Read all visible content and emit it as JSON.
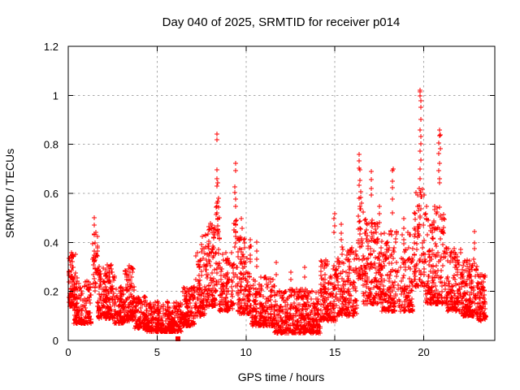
{
  "chart_data": {
    "type": "scatter",
    "title": "Day 040 of 2025, SRMTID for receiver p014",
    "xlabel": "GPS time / hours",
    "ylabel": "SRMTID / TECUs",
    "xlim": [
      0,
      24
    ],
    "ylim": [
      0,
      1.2
    ],
    "xticks": [
      0,
      5,
      10,
      15,
      20
    ],
    "yticks": [
      0,
      0.2,
      0.4,
      0.6,
      0.8,
      1,
      1.2
    ],
    "grid": {
      "visible": true,
      "style": "dashed",
      "lines_at_x": [
        5,
        10,
        15,
        20
      ],
      "lines_at_y": [
        0.2,
        0.4,
        0.6,
        0.8,
        1.0
      ]
    },
    "legend": "none",
    "marker": {
      "shape": "plus",
      "size": 7
    },
    "colors": {
      "marker": "#ff0000",
      "grid": "#a9a9a9",
      "axis": "#000000",
      "background": "#ffffff"
    },
    "max_point": {
      "x": 19.8,
      "y": 1.02
    },
    "special_points": [
      {
        "x": 6.17,
        "y": 0.005,
        "marker": "filled-square"
      }
    ],
    "spike_columns": [
      {
        "x": 1.48,
        "ys": [
          0.5,
          0.47,
          0.43,
          0.4,
          0.35,
          0.32,
          0.29
        ]
      },
      {
        "x": 2.3,
        "ys": [
          0.3,
          0.28,
          0.26,
          0.24
        ]
      },
      {
        "x": 3.4,
        "ys": [
          0.3,
          0.27,
          0.25
        ]
      },
      {
        "x": 7.5,
        "ys": [
          0.42,
          0.39,
          0.36,
          0.33
        ]
      },
      {
        "x": 8.37,
        "ys": [
          0.845,
          0.82,
          0.7,
          0.66,
          0.645,
          0.63,
          0.55,
          0.52,
          0.515,
          0.5,
          0.47,
          0.44
        ]
      },
      {
        "x": 9.42,
        "ys": [
          0.72,
          0.69,
          0.63,
          0.6,
          0.58,
          0.55,
          0.47,
          0.44
        ]
      },
      {
        "x": 9.75,
        "ys": [
          0.5,
          0.46,
          0.42
        ]
      },
      {
        "x": 10.6,
        "ys": [
          0.4,
          0.37,
          0.33,
          0.3
        ]
      },
      {
        "x": 11.66,
        "ys": [
          0.315,
          0.27
        ]
      },
      {
        "x": 12.5,
        "ys": [
          0.28,
          0.25
        ]
      },
      {
        "x": 13.3,
        "ys": [
          0.3,
          0.26
        ]
      },
      {
        "x": 14.95,
        "ys": [
          0.52,
          0.5,
          0.47,
          0.44
        ]
      },
      {
        "x": 15.35,
        "ys": [
          0.47,
          0.44,
          0.41
        ]
      },
      {
        "x": 16.4,
        "ys": [
          0.76,
          0.73,
          0.7,
          0.698,
          0.65,
          0.63,
          0.58,
          0.55
        ]
      },
      {
        "x": 17.05,
        "ys": [
          0.69,
          0.66,
          0.62,
          0.59
        ]
      },
      {
        "x": 17.5,
        "ys": [
          0.55,
          0.52,
          0.48
        ]
      },
      {
        "x": 18.25,
        "ys": [
          0.7,
          0.695,
          0.65,
          0.62,
          0.58,
          0.52
        ]
      },
      {
        "x": 18.9,
        "ys": [
          0.5,
          0.46
        ]
      },
      {
        "x": 19.8,
        "ys": [
          1.02,
          1.015,
          1.0,
          0.98,
          0.95,
          0.9,
          0.86,
          0.83,
          0.8,
          0.77,
          0.74,
          0.7,
          0.66,
          0.62
        ]
      },
      {
        "x": 20.9,
        "ys": [
          0.86,
          0.84,
          0.838,
          0.81,
          0.78,
          0.76,
          0.72,
          0.69,
          0.66,
          0.64
        ]
      },
      {
        "x": 22.85,
        "ys": [
          0.44,
          0.4,
          0.37,
          0.33
        ]
      }
    ],
    "noise_bands": [
      {
        "x0": 0.02,
        "x1": 0.4,
        "n": 80,
        "ylo": 0.14,
        "yhi": 0.36,
        "bias": 1.3
      },
      {
        "x0": 0.3,
        "x1": 1.3,
        "n": 150,
        "ylo": 0.07,
        "yhi": 0.26,
        "bias": 1.8
      },
      {
        "x0": 1.35,
        "x1": 1.65,
        "n": 30,
        "ylo": 0.2,
        "yhi": 0.46,
        "bias": 1.5
      },
      {
        "x0": 1.65,
        "x1": 2.6,
        "n": 180,
        "ylo": 0.09,
        "yhi": 0.31,
        "bias": 1.8
      },
      {
        "x0": 2.6,
        "x1": 3.15,
        "n": 90,
        "ylo": 0.07,
        "yhi": 0.22,
        "bias": 1.8
      },
      {
        "x0": 3.15,
        "x1": 3.75,
        "n": 95,
        "ylo": 0.08,
        "yhi": 0.3,
        "bias": 1.8
      },
      {
        "x0": 3.75,
        "x1": 4.4,
        "n": 95,
        "ylo": 0.05,
        "yhi": 0.18,
        "bias": 1.8
      },
      {
        "x0": 4.4,
        "x1": 6.35,
        "n": 300,
        "ylo": 0.035,
        "yhi": 0.16,
        "bias": 1.7
      },
      {
        "x0": 6.4,
        "x1": 7.1,
        "n": 110,
        "ylo": 0.06,
        "yhi": 0.22,
        "bias": 1.7
      },
      {
        "x0": 7.1,
        "x1": 7.7,
        "n": 90,
        "ylo": 0.1,
        "yhi": 0.38,
        "bias": 1.8
      },
      {
        "x0": 7.7,
        "x1": 8.3,
        "n": 110,
        "ylo": 0.14,
        "yhi": 0.48,
        "bias": 1.7
      },
      {
        "x0": 8.28,
        "x1": 8.5,
        "n": 26,
        "ylo": 0.22,
        "yhi": 0.6,
        "bias": 1.4
      },
      {
        "x0": 8.5,
        "x1": 9.3,
        "n": 120,
        "ylo": 0.12,
        "yhi": 0.36,
        "bias": 1.7
      },
      {
        "x0": 9.3,
        "x1": 9.55,
        "n": 22,
        "ylo": 0.22,
        "yhi": 0.5,
        "bias": 1.4
      },
      {
        "x0": 9.55,
        "x1": 10.3,
        "n": 130,
        "ylo": 0.11,
        "yhi": 0.42,
        "bias": 1.9
      },
      {
        "x0": 10.3,
        "x1": 11.6,
        "n": 200,
        "ylo": 0.06,
        "yhi": 0.26,
        "bias": 1.8
      },
      {
        "x0": 11.6,
        "x1": 14.2,
        "n": 420,
        "ylo": 0.03,
        "yhi": 0.21,
        "bias": 1.7
      },
      {
        "x0": 14.2,
        "x1": 15.1,
        "n": 150,
        "ylo": 0.08,
        "yhi": 0.34,
        "bias": 1.8
      },
      {
        "x0": 15.1,
        "x1": 16.25,
        "n": 170,
        "ylo": 0.1,
        "yhi": 0.38,
        "bias": 1.8
      },
      {
        "x0": 16.3,
        "x1": 16.6,
        "n": 40,
        "ylo": 0.25,
        "yhi": 0.62,
        "bias": 1.5
      },
      {
        "x0": 16.6,
        "x1": 17.6,
        "n": 160,
        "ylo": 0.15,
        "yhi": 0.5,
        "bias": 1.8
      },
      {
        "x0": 17.6,
        "x1": 19.4,
        "n": 240,
        "ylo": 0.12,
        "yhi": 0.45,
        "bias": 1.8
      },
      {
        "x0": 19.45,
        "x1": 20.1,
        "n": 85,
        "ylo": 0.22,
        "yhi": 0.62,
        "bias": 1.6
      },
      {
        "x0": 20.1,
        "x1": 21.3,
        "n": 190,
        "ylo": 0.15,
        "yhi": 0.55,
        "bias": 1.8
      },
      {
        "x0": 21.3,
        "x1": 22.1,
        "n": 130,
        "ylo": 0.12,
        "yhi": 0.38,
        "bias": 1.8
      },
      {
        "x0": 22.1,
        "x1": 23.0,
        "n": 160,
        "ylo": 0.1,
        "yhi": 0.33,
        "bias": 1.8
      },
      {
        "x0": 23.0,
        "x1": 23.5,
        "n": 85,
        "ylo": 0.08,
        "yhi": 0.27,
        "bias": 1.7
      }
    ]
  }
}
